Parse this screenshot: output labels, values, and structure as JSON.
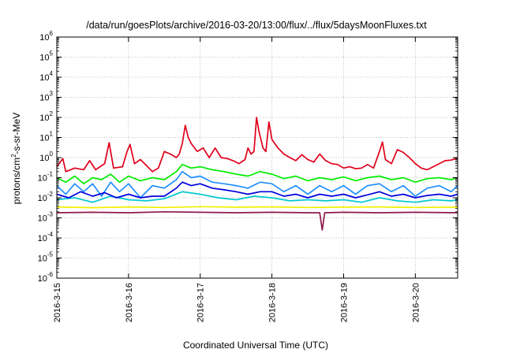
{
  "chart_data": {
    "type": "line",
    "title": "/data/run/goesPlots/archive/2016-03-20/13:00/flux/../flux/5daysMoonFluxes.txt",
    "xlabel": "Coordinated Universal Time (UTC)",
    "ylabel": {
      "prefix": "protons/cm",
      "superscript": "2",
      "suffix": "-s-sr-MeV"
    },
    "yscale": "log",
    "ylim": [
      -6,
      6
    ],
    "y_tick_exponents": [
      -6,
      -5,
      -4,
      -3,
      -2,
      -1,
      0,
      1,
      2,
      3,
      4,
      5,
      6
    ],
    "y_tick_base": "10",
    "xlim": [
      "2016-03-15 00:00",
      "2016-03-20 14:10"
    ],
    "x_ticks": [
      "2016-3-15",
      "2016-3-16",
      "2016-3-17",
      "2016-3-18",
      "2016-3-19",
      "2016-3-20"
    ],
    "grid": true,
    "legend": "none",
    "series": [
      {
        "color": "#e0001a",
        "points": [
          [
            "2016-03-15 00:00",
            0.35
          ],
          [
            "2016-03-15 02:00",
            0.9
          ],
          [
            "2016-03-15 03:00",
            0.2
          ],
          [
            "2016-03-15 06:00",
            0.3
          ],
          [
            "2016-03-15 09:00",
            0.25
          ],
          [
            "2016-03-15 11:00",
            0.7
          ],
          [
            "2016-03-15 13:00",
            0.25
          ],
          [
            "2016-03-15 16:00",
            0.5
          ],
          [
            "2016-03-15 17:30",
            5.5
          ],
          [
            "2016-03-15 19:00",
            0.3
          ],
          [
            "2016-03-15 22:00",
            0.35
          ],
          [
            "2016-03-15 23:30",
            2
          ],
          [
            "2016-03-16 00:30",
            4.5
          ],
          [
            "2016-03-16 02:00",
            0.5
          ],
          [
            "2016-03-16 04:00",
            0.8
          ],
          [
            "2016-03-16 06:00",
            0.4
          ],
          [
            "2016-03-16 08:00",
            0.2
          ],
          [
            "2016-03-16 10:00",
            0.3
          ],
          [
            "2016-03-16 12:00",
            2
          ],
          [
            "2016-03-16 14:00",
            1.5
          ],
          [
            "2016-03-16 16:00",
            1.0
          ],
          [
            "2016-03-16 17:00",
            1.5
          ],
          [
            "2016-03-16 18:00",
            5
          ],
          [
            "2016-03-16 19:00",
            40
          ],
          [
            "2016-03-16 20:00",
            10
          ],
          [
            "2016-03-16 21:00",
            5
          ],
          [
            "2016-03-16 23:00",
            2
          ],
          [
            "2016-03-17 01:00",
            3
          ],
          [
            "2016-03-17 03:00",
            1
          ],
          [
            "2016-03-17 05:00",
            3
          ],
          [
            "2016-03-17 07:00",
            1
          ],
          [
            "2016-03-17 09:00",
            0.9
          ],
          [
            "2016-03-17 11:00",
            0.7
          ],
          [
            "2016-03-17 13:00",
            0.5
          ],
          [
            "2016-03-17 15:00",
            0.8
          ],
          [
            "2016-03-17 16:00",
            3
          ],
          [
            "2016-03-17 17:00",
            1.5
          ],
          [
            "2016-03-17 18:00",
            2
          ],
          [
            "2016-03-17 18:50",
            100
          ],
          [
            "2016-03-17 19:40",
            20
          ],
          [
            "2016-03-17 21:00",
            3
          ],
          [
            "2016-03-17 22:00",
            2
          ],
          [
            "2016-03-17 23:00",
            60
          ],
          [
            "2016-03-18 00:00",
            8
          ],
          [
            "2016-03-18 02:00",
            3
          ],
          [
            "2016-03-18 04:00",
            1.5
          ],
          [
            "2016-03-18 06:00",
            1
          ],
          [
            "2016-03-18 08:00",
            0.7
          ],
          [
            "2016-03-18 10:00",
            1.4
          ],
          [
            "2016-03-18 12:00",
            0.8
          ],
          [
            "2016-03-18 14:00",
            0.6
          ],
          [
            "2016-03-18 16:00",
            1.5
          ],
          [
            "2016-03-18 18:00",
            0.7
          ],
          [
            "2016-03-18 20:00",
            0.5
          ],
          [
            "2016-03-18 22:00",
            0.45
          ],
          [
            "2016-03-19 00:00",
            0.3
          ],
          [
            "2016-03-19 02:00",
            0.35
          ],
          [
            "2016-03-19 04:00",
            0.28
          ],
          [
            "2016-03-19 06:00",
            0.3
          ],
          [
            "2016-03-19 08:00",
            0.45
          ],
          [
            "2016-03-19 10:00",
            0.3
          ],
          [
            "2016-03-19 12:00",
            2
          ],
          [
            "2016-03-19 13:00",
            6
          ],
          [
            "2016-03-19 14:00",
            0.8
          ],
          [
            "2016-03-19 16:00",
            0.5
          ],
          [
            "2016-03-19 18:00",
            2.5
          ],
          [
            "2016-03-19 20:00",
            1.8
          ],
          [
            "2016-03-19 22:00",
            1
          ],
          [
            "2016-03-20 00:00",
            0.5
          ],
          [
            "2016-03-20 02:00",
            0.3
          ],
          [
            "2016-03-20 04:00",
            0.25
          ],
          [
            "2016-03-20 06:00",
            0.35
          ],
          [
            "2016-03-20 08:00",
            0.5
          ],
          [
            "2016-03-20 10:00",
            0.7
          ],
          [
            "2016-03-20 12:00",
            0.75
          ],
          [
            "2016-03-20 14:10",
            0.95
          ]
        ]
      },
      {
        "color": "#00ee00",
        "points": [
          [
            "2016-03-15 00:00",
            0.1
          ],
          [
            "2016-03-15 03:00",
            0.06
          ],
          [
            "2016-03-15 06:00",
            0.12
          ],
          [
            "2016-03-15 09:00",
            0.05
          ],
          [
            "2016-03-15 12:00",
            0.1
          ],
          [
            "2016-03-15 15:00",
            0.08
          ],
          [
            "2016-03-15 18:00",
            0.15
          ],
          [
            "2016-03-15 21:00",
            0.06
          ],
          [
            "2016-03-16 00:00",
            0.12
          ],
          [
            "2016-03-16 04:00",
            0.07
          ],
          [
            "2016-03-16 08:00",
            0.1
          ],
          [
            "2016-03-16 12:00",
            0.08
          ],
          [
            "2016-03-16 16:00",
            0.2
          ],
          [
            "2016-03-16 18:00",
            0.45
          ],
          [
            "2016-03-16 21:00",
            0.3
          ],
          [
            "2016-03-17 00:00",
            0.35
          ],
          [
            "2016-03-17 04:00",
            0.25
          ],
          [
            "2016-03-17 08:00",
            0.2
          ],
          [
            "2016-03-17 12:00",
            0.15
          ],
          [
            "2016-03-17 16:00",
            0.12
          ],
          [
            "2016-03-17 20:00",
            0.2
          ],
          [
            "2016-03-18 00:00",
            0.15
          ],
          [
            "2016-03-18 04:00",
            0.09
          ],
          [
            "2016-03-18 08:00",
            0.12
          ],
          [
            "2016-03-18 12:00",
            0.07
          ],
          [
            "2016-03-18 16:00",
            0.1
          ],
          [
            "2016-03-18 20:00",
            0.08
          ],
          [
            "2016-03-19 00:00",
            0.11
          ],
          [
            "2016-03-19 04:00",
            0.07
          ],
          [
            "2016-03-19 08:00",
            0.1
          ],
          [
            "2016-03-19 12:00",
            0.12
          ],
          [
            "2016-03-19 16:00",
            0.08
          ],
          [
            "2016-03-19 20:00",
            0.1
          ],
          [
            "2016-03-20 00:00",
            0.06
          ],
          [
            "2016-03-20 04:00",
            0.09
          ],
          [
            "2016-03-20 08:00",
            0.1
          ],
          [
            "2016-03-20 12:00",
            0.08
          ],
          [
            "2016-03-20 14:10",
            0.1
          ]
        ]
      },
      {
        "color": "#1f8fff",
        "points": [
          [
            "2016-03-15 00:00",
            0.04
          ],
          [
            "2016-03-15 03:00",
            0.015
          ],
          [
            "2016-03-15 06:00",
            0.05
          ],
          [
            "2016-03-15 09:00",
            0.02
          ],
          [
            "2016-03-15 12:00",
            0.05
          ],
          [
            "2016-03-15 15:00",
            0.012
          ],
          [
            "2016-03-15 18:00",
            0.06
          ],
          [
            "2016-03-15 21:00",
            0.02
          ],
          [
            "2016-03-16 00:00",
            0.05
          ],
          [
            "2016-03-16 04:00",
            0.01
          ],
          [
            "2016-03-16 08:00",
            0.04
          ],
          [
            "2016-03-16 12:00",
            0.03
          ],
          [
            "2016-03-16 16:00",
            0.08
          ],
          [
            "2016-03-16 18:00",
            0.2
          ],
          [
            "2016-03-16 21:00",
            0.1
          ],
          [
            "2016-03-17 00:00",
            0.12
          ],
          [
            "2016-03-17 04:00",
            0.06
          ],
          [
            "2016-03-17 08:00",
            0.05
          ],
          [
            "2016-03-17 12:00",
            0.04
          ],
          [
            "2016-03-17 16:00",
            0.03
          ],
          [
            "2016-03-17 20:00",
            0.06
          ],
          [
            "2016-03-18 00:00",
            0.05
          ],
          [
            "2016-03-18 04:00",
            0.02
          ],
          [
            "2016-03-18 08:00",
            0.04
          ],
          [
            "2016-03-18 12:00",
            0.015
          ],
          [
            "2016-03-18 16:00",
            0.04
          ],
          [
            "2016-03-18 20:00",
            0.02
          ],
          [
            "2016-03-19 00:00",
            0.04
          ],
          [
            "2016-03-19 04:00",
            0.015
          ],
          [
            "2016-03-19 08:00",
            0.04
          ],
          [
            "2016-03-19 12:00",
            0.05
          ],
          [
            "2016-03-19 16:00",
            0.02
          ],
          [
            "2016-03-19 20:00",
            0.04
          ],
          [
            "2016-03-20 00:00",
            0.012
          ],
          [
            "2016-03-20 04:00",
            0.03
          ],
          [
            "2016-03-20 08:00",
            0.04
          ],
          [
            "2016-03-20 12:00",
            0.02
          ],
          [
            "2016-03-20 14:10",
            0.04
          ]
        ]
      },
      {
        "color": "#00c8d0",
        "points": [
          [
            "2016-03-15 00:00",
            0.008
          ],
          [
            "2016-03-15 06:00",
            0.01
          ],
          [
            "2016-03-15 12:00",
            0.006
          ],
          [
            "2016-03-15 18:00",
            0.012
          ],
          [
            "2016-03-16 00:00",
            0.008
          ],
          [
            "2016-03-16 06:00",
            0.007
          ],
          [
            "2016-03-16 12:00",
            0.009
          ],
          [
            "2016-03-16 18:00",
            0.02
          ],
          [
            "2016-03-17 00:00",
            0.015
          ],
          [
            "2016-03-17 06:00",
            0.01
          ],
          [
            "2016-03-17 12:00",
            0.008
          ],
          [
            "2016-03-17 18:00",
            0.012
          ],
          [
            "2016-03-18 00:00",
            0.01
          ],
          [
            "2016-03-18 06:00",
            0.007
          ],
          [
            "2016-03-18 12:00",
            0.008
          ],
          [
            "2016-03-18 18:00",
            0.007
          ],
          [
            "2016-03-19 00:00",
            0.008
          ],
          [
            "2016-03-19 06:00",
            0.006
          ],
          [
            "2016-03-19 12:00",
            0.01
          ],
          [
            "2016-03-19 18:00",
            0.007
          ],
          [
            "2016-03-20 00:00",
            0.006
          ],
          [
            "2016-03-20 06:00",
            0.008
          ],
          [
            "2016-03-20 12:00",
            0.007
          ],
          [
            "2016-03-20 14:10",
            0.008
          ]
        ]
      },
      {
        "color": "#0000dd",
        "points": [
          [
            "2016-03-15 00:00",
            0.015
          ],
          [
            "2016-03-15 04:00",
            0.01
          ],
          [
            "2016-03-15 08:00",
            0.02
          ],
          [
            "2016-03-15 12:00",
            0.012
          ],
          [
            "2016-03-15 16:00",
            0.018
          ],
          [
            "2016-03-15 20:00",
            0.01
          ],
          [
            "2016-03-16 00:00",
            0.015
          ],
          [
            "2016-03-16 04:00",
            0.01
          ],
          [
            "2016-03-16 08:00",
            0.012
          ],
          [
            "2016-03-16 12:00",
            0.012
          ],
          [
            "2016-03-16 16:00",
            0.03
          ],
          [
            "2016-03-16 18:00",
            0.06
          ],
          [
            "2016-03-16 21:00",
            0.04
          ],
          [
            "2016-03-17 00:00",
            0.05
          ],
          [
            "2016-03-17 04:00",
            0.03
          ],
          [
            "2016-03-17 08:00",
            0.025
          ],
          [
            "2016-03-17 12:00",
            0.02
          ],
          [
            "2016-03-17 16:00",
            0.015
          ],
          [
            "2016-03-17 20:00",
            0.02
          ],
          [
            "2016-03-18 00:00",
            0.02
          ],
          [
            "2016-03-18 04:00",
            0.012
          ],
          [
            "2016-03-18 08:00",
            0.015
          ],
          [
            "2016-03-18 12:00",
            0.01
          ],
          [
            "2016-03-18 16:00",
            0.015
          ],
          [
            "2016-03-18 20:00",
            0.012
          ],
          [
            "2016-03-19 00:00",
            0.015
          ],
          [
            "2016-03-19 04:00",
            0.01
          ],
          [
            "2016-03-19 08:00",
            0.014
          ],
          [
            "2016-03-19 12:00",
            0.02
          ],
          [
            "2016-03-19 16:00",
            0.012
          ],
          [
            "2016-03-19 20:00",
            0.015
          ],
          [
            "2016-03-20 00:00",
            0.01
          ],
          [
            "2016-03-20 04:00",
            0.013
          ],
          [
            "2016-03-20 08:00",
            0.015
          ],
          [
            "2016-03-20 12:00",
            0.012
          ],
          [
            "2016-03-20 14:10",
            0.015
          ]
        ]
      },
      {
        "color": "#f0f000",
        "points": [
          [
            "2016-03-15 00:00",
            0.0035
          ],
          [
            "2016-03-15 12:00",
            0.0032
          ],
          [
            "2016-03-16 00:00",
            0.0035
          ],
          [
            "2016-03-16 12:00",
            0.0033
          ],
          [
            "2016-03-17 00:00",
            0.0036
          ],
          [
            "2016-03-17 12:00",
            0.0034
          ],
          [
            "2016-03-18 00:00",
            0.0035
          ],
          [
            "2016-03-18 12:00",
            0.0033
          ],
          [
            "2016-03-19 00:00",
            0.0034
          ],
          [
            "2016-03-19 12:00",
            0.0035
          ],
          [
            "2016-03-20 00:00",
            0.0033
          ],
          [
            "2016-03-20 14:10",
            0.0034
          ]
        ]
      },
      {
        "color": "#8b1a4b",
        "points": [
          [
            "2016-03-15 00:00",
            0.0018
          ],
          [
            "2016-03-15 12:00",
            0.0019
          ],
          [
            "2016-03-16 00:00",
            0.0018
          ],
          [
            "2016-03-16 12:00",
            0.002
          ],
          [
            "2016-03-17 00:00",
            0.0019
          ],
          [
            "2016-03-17 12:00",
            0.0018
          ],
          [
            "2016-03-18 00:00",
            0.0019
          ],
          [
            "2016-03-18 12:00",
            0.0018
          ],
          [
            "2016-03-18 16:00",
            0.0018
          ],
          [
            "2016-03-18 16:50",
            0.00025
          ],
          [
            "2016-03-18 17:40",
            0.0018
          ],
          [
            "2016-03-19 00:00",
            0.0019
          ],
          [
            "2016-03-19 12:00",
            0.0018
          ],
          [
            "2016-03-20 00:00",
            0.0019
          ],
          [
            "2016-03-20 14:10",
            0.0018
          ]
        ]
      }
    ]
  }
}
